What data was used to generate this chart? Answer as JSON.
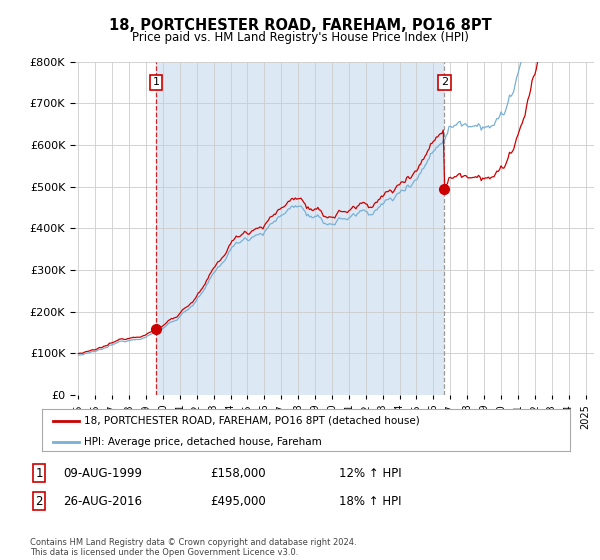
{
  "title": "18, PORTCHESTER ROAD, FAREHAM, PO16 8PT",
  "subtitle": "Price paid vs. HM Land Registry's House Price Index (HPI)",
  "ylim": [
    0,
    800000
  ],
  "xlim_start": 1994.8,
  "xlim_end": 2025.5,
  "purchase1_date": 1999.6,
  "purchase1_price": 158000,
  "purchase2_date": 2016.65,
  "purchase2_price": 495000,
  "line_color_red": "#cc0000",
  "line_color_blue": "#7ab0d4",
  "dashed1_color": "#cc0000",
  "dashed2_color": "#888888",
  "fill_color": "#dce9f5",
  "marker_color": "#cc0000",
  "legend_label_red": "18, PORTCHESTER ROAD, FAREHAM, PO16 8PT (detached house)",
  "legend_label_blue": "HPI: Average price, detached house, Fareham",
  "table_row1": [
    "1",
    "09-AUG-1999",
    "£158,000",
    "12% ↑ HPI"
  ],
  "table_row2": [
    "2",
    "26-AUG-2016",
    "£495,000",
    "18% ↑ HPI"
  ],
  "footer": "Contains HM Land Registry data © Crown copyright and database right 2024.\nThis data is licensed under the Open Government Licence v3.0.",
  "background_color": "#ffffff",
  "grid_color": "#cccccc"
}
